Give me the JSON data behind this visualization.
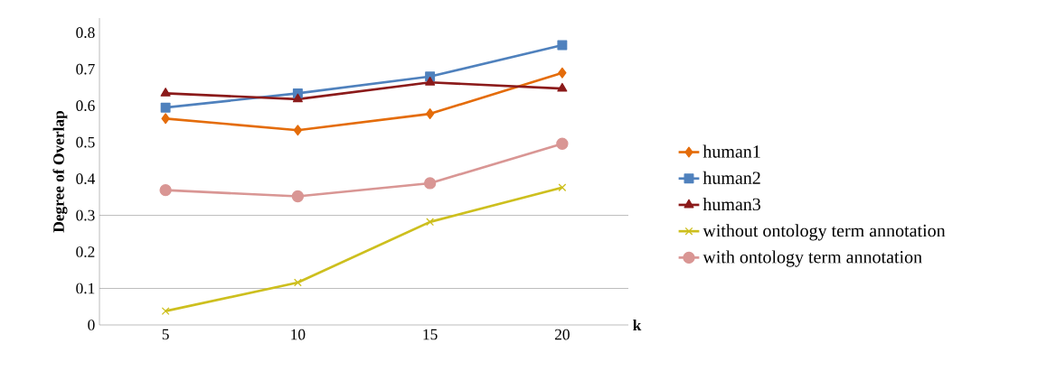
{
  "chart_data": {
    "type": "line",
    "xlabel": "k",
    "ylabel": "Degree of Overlap",
    "categories": [
      "5",
      "10",
      "15",
      "20"
    ],
    "ylim": [
      0,
      0.84
    ],
    "yticks": [
      0,
      0.1,
      0.2,
      0.3,
      0.4,
      0.5,
      0.6,
      0.7,
      0.8
    ],
    "legend": "right",
    "grid": false,
    "ref_lines": [
      {
        "axis": "y",
        "value": 0.1,
        "color": "#808080"
      },
      {
        "axis": "y",
        "value": 0.3,
        "color": "#808080"
      }
    ],
    "series": [
      {
        "name": "human1",
        "color": "#e46c0a",
        "marker": "diamond",
        "values": [
          0.565,
          0.533,
          0.578,
          0.69
        ]
      },
      {
        "name": "human2",
        "color": "#4f81bd",
        "marker": "square",
        "values": [
          0.595,
          0.634,
          0.68,
          0.766
        ]
      },
      {
        "name": "human3",
        "color": "#8b1a1a",
        "marker": "triangle",
        "values": [
          0.634,
          0.618,
          0.664,
          0.647
        ]
      },
      {
        "name": "without ontology term annotation",
        "color": "#cdbf1e",
        "marker": "cross",
        "values": [
          0.038,
          0.116,
          0.282,
          0.376
        ]
      },
      {
        "name": "with ontology term annotation",
        "color": "#d99694",
        "marker": "circle",
        "values": [
          0.369,
          0.352,
          0.388,
          0.496
        ]
      }
    ]
  }
}
